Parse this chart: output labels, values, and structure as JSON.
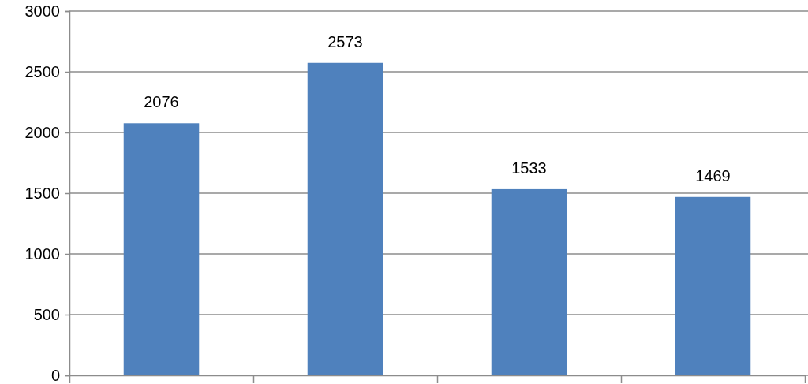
{
  "chart_data": {
    "type": "bar",
    "categories": [
      null,
      null,
      null,
      null
    ],
    "values": [
      2076,
      2573,
      1533,
      1469
    ],
    "color": "#4f81bd",
    "ylim": [
      0,
      3000
    ],
    "yticks": [
      0,
      500,
      1000,
      1500,
      2000,
      2500,
      3000
    ],
    "grid": "y",
    "data_labels": true
  }
}
